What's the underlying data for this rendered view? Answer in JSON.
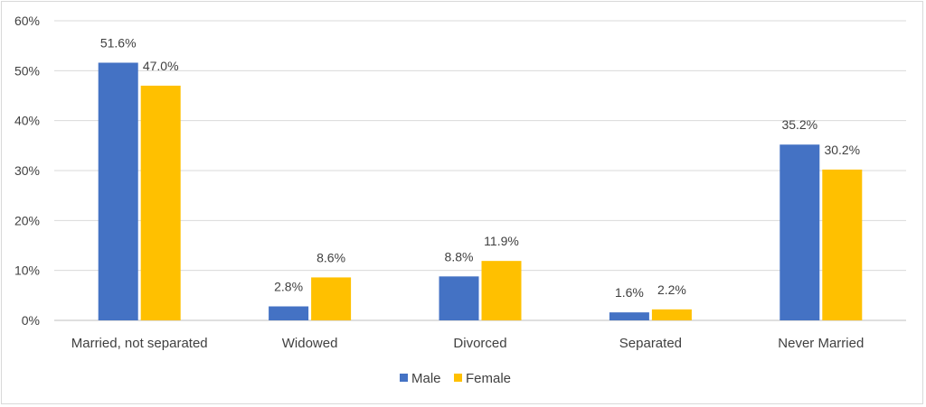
{
  "chart_data": {
    "type": "bar",
    "title": "",
    "xlabel": "",
    "ylabel": "",
    "categories": [
      "Married, not separated",
      "Widowed",
      "Divorced",
      "Separated",
      "Never Married"
    ],
    "series": [
      {
        "name": "Male",
        "color": "#4472c4",
        "values": [
          51.6,
          2.8,
          8.8,
          1.6,
          35.2
        ],
        "labels": [
          "51.6%",
          "2.8%",
          "8.8%",
          "1.6%",
          "35.2%"
        ]
      },
      {
        "name": "Female",
        "color": "#ffc000",
        "values": [
          47.0,
          8.6,
          11.9,
          2.2,
          30.2
        ],
        "labels": [
          "47.0%",
          "8.6%",
          "11.9%",
          "2.2%",
          "30.2%"
        ]
      }
    ],
    "ylim": [
      0,
      60
    ],
    "yticks": [
      0,
      10,
      20,
      30,
      40,
      50,
      60
    ],
    "ytick_labels": [
      "0%",
      "10%",
      "20%",
      "30%",
      "40%",
      "50%",
      "60%"
    ],
    "grid": true,
    "legend": "bottom-center"
  }
}
